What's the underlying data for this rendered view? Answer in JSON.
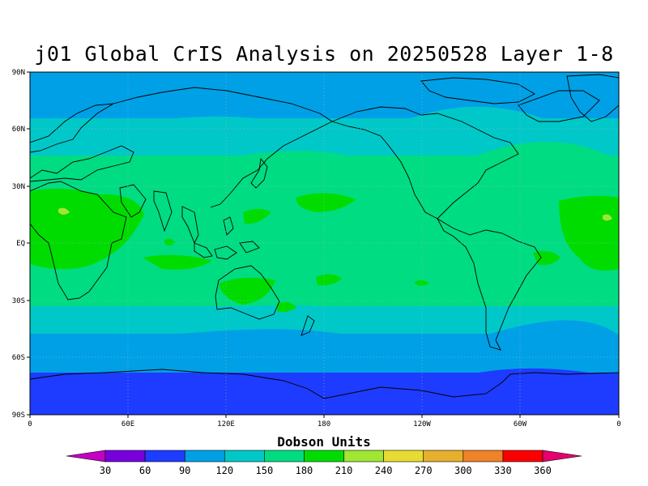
{
  "title": "j01 Global CrIS Analysis on 20250528 Layer 1-8",
  "map": {
    "projection": "latlon",
    "lon_range": [
      0,
      360
    ],
    "lat_range": [
      -90,
      90
    ],
    "grid": "dotted",
    "lat_labels": [
      "90N",
      "60N",
      "30N",
      "EQ",
      "30S",
      "60S",
      "90S"
    ],
    "lon_labels": [
      "0",
      "60E",
      "120E",
      "180",
      "120W",
      "60W",
      "0"
    ],
    "bands": [
      {
        "name": "arctic",
        "level": 90
      },
      {
        "name": "northern-midlat",
        "level": 150
      },
      {
        "name": "tropics",
        "level": 180
      },
      {
        "name": "southern-midlat",
        "level": 150
      },
      {
        "name": "southern-high",
        "level": 120
      },
      {
        "name": "antarctic",
        "level": 60
      }
    ]
  },
  "colorbar": {
    "title": "Dobson Units",
    "labels": [
      "30",
      "60",
      "90",
      "120",
      "150",
      "180",
      "210",
      "240",
      "270",
      "300",
      "330",
      "360"
    ],
    "colors": [
      "#c400c4",
      "#7800dc",
      "#1e3cff",
      "#00a0e6",
      "#00c8c8",
      "#00dc82",
      "#00dc00",
      "#a0e632",
      "#e6dc32",
      "#e6af2d",
      "#f08228",
      "#fa0000",
      "#e6006e"
    ]
  }
}
